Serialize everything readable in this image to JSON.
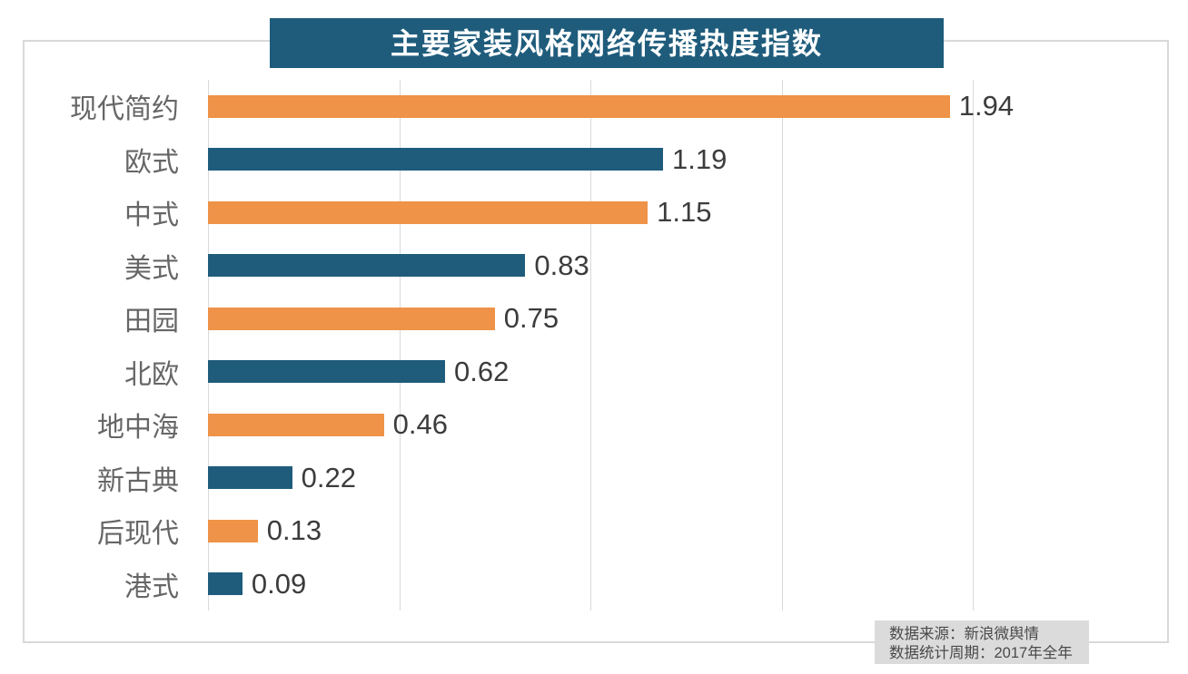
{
  "title": "主要家装风格网络传播热度指数",
  "chart_data": {
    "type": "bar",
    "orientation": "horizontal",
    "title": "主要家装风格网络传播热度指数",
    "categories": [
      "现代简约",
      "欧式",
      "中式",
      "美式",
      "田园",
      "北欧",
      "地中海",
      "新古典",
      "后现代",
      "港式"
    ],
    "values": [
      1.94,
      1.19,
      1.15,
      0.83,
      0.75,
      0.62,
      0.46,
      0.22,
      0.13,
      0.09
    ],
    "value_labels": [
      "1.94",
      "1.19",
      "1.15",
      "0.83",
      "0.75",
      "0.62",
      "0.46",
      "0.22",
      "0.13",
      "0.09"
    ],
    "xlim": [
      0,
      2.5
    ],
    "gridline_ticks": [
      0,
      0.5,
      1.0,
      1.5,
      2.0
    ],
    "axis_tick_labels_shown": false,
    "grid": "vertical gridlines only",
    "legend_position": "none",
    "bar_colors_alternating": [
      "#EE9348",
      "#1F5C7C"
    ],
    "value_labels_position": "right of bar end"
  },
  "colors": {
    "title_bg": "#1F5C7C",
    "title_text": "#FFFFFF",
    "bar_orange": "#EE9348",
    "bar_blue": "#1F5C7C",
    "gridline": "#D9D9D9",
    "border": "#D9D9D9",
    "category_label": "#666666",
    "value_label": "#3C3C3C",
    "note_bg": "#DBDBDB",
    "note_text": "#4A4A4A"
  },
  "source_note": {
    "line1": "数据来源：新浪微舆情",
    "line2": "数据统计周期：2017年全年"
  }
}
